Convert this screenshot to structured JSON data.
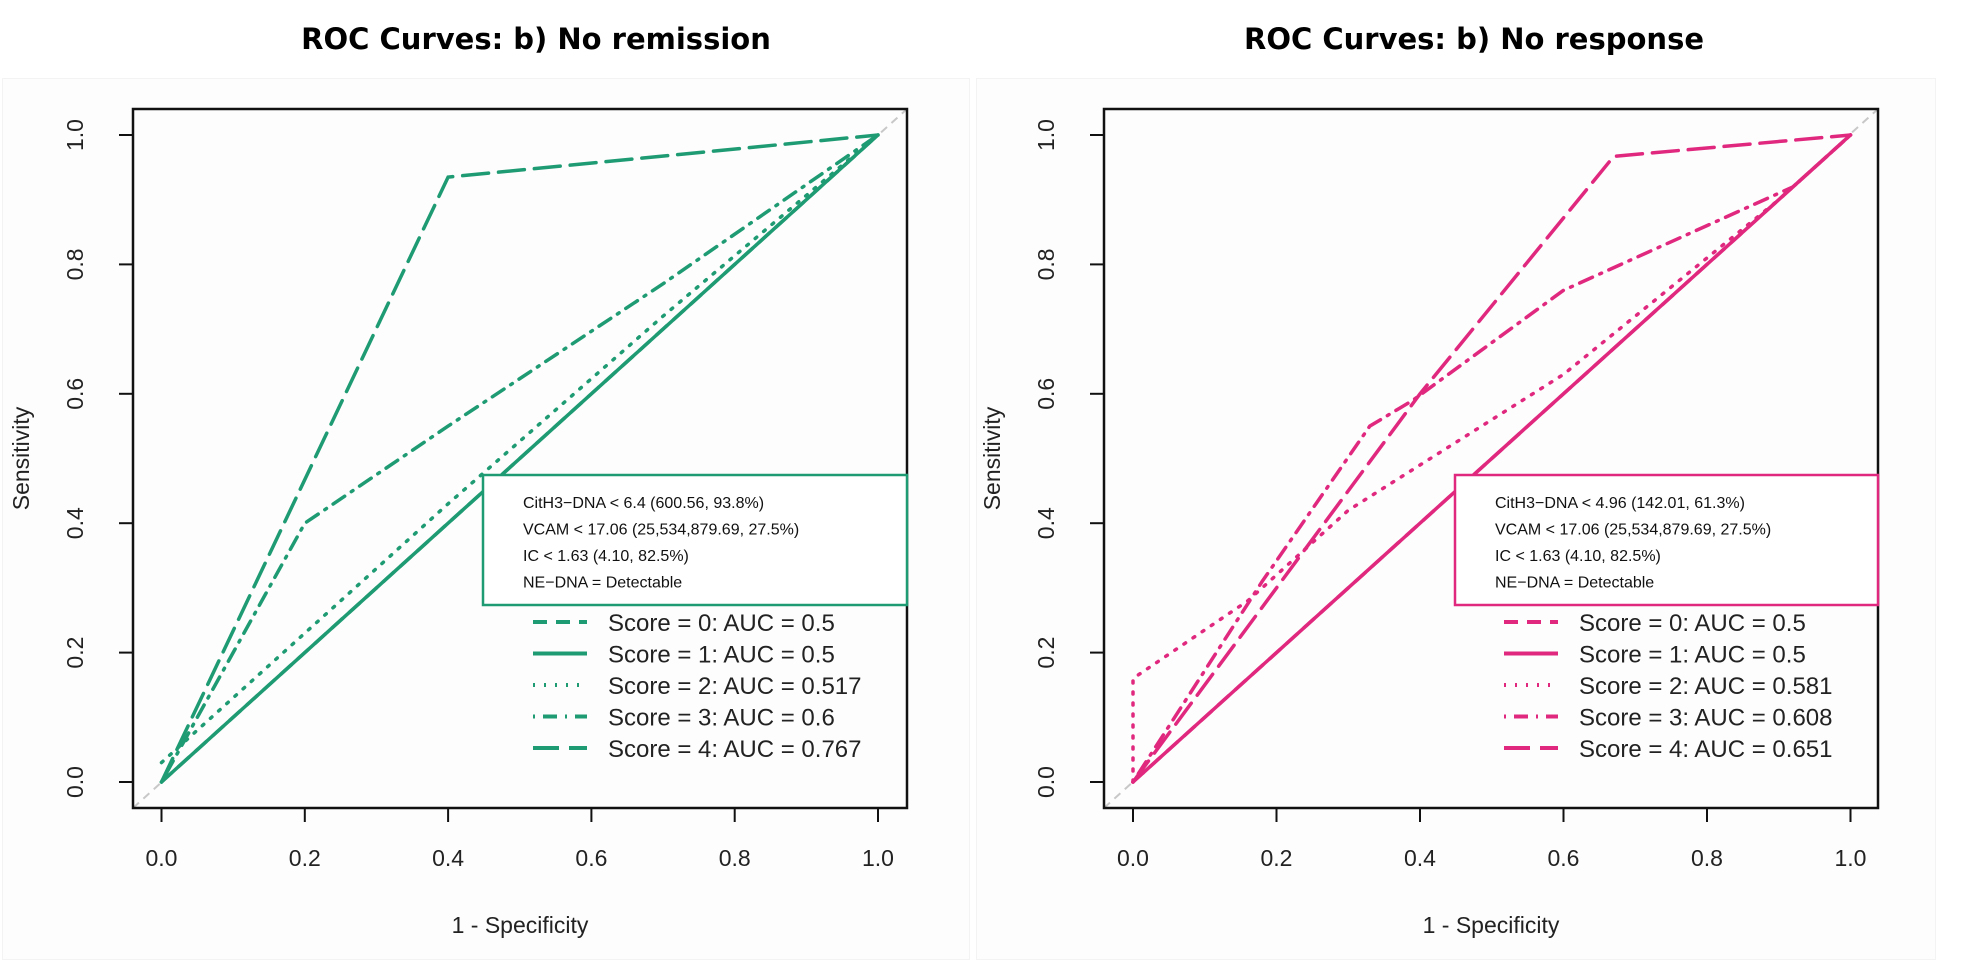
{
  "chart_data": [
    {
      "type": "line",
      "title": "ROC Curves: b) No remission",
      "xlabel": "1 - Specificity",
      "ylabel": "Sensitivity",
      "xlim": [
        0,
        1
      ],
      "ylim": [
        0,
        1
      ],
      "xticks": [
        "0.0",
        "0.2",
        "0.4",
        "0.6",
        "0.8",
        "1.0"
      ],
      "yticks": [
        "0.0",
        "0.2",
        "0.4",
        "0.6",
        "0.8",
        "1.0"
      ],
      "color": "#1f9b73",
      "annotation": [
        "CitH3−DNA < 6.4 (600.56, 93.8%)",
        "VCAM < 17.06 (25,534,879.69, 27.5%)",
        "IC < 1.63 (4.10, 82.5%)",
        "NE−DNA = Detectable"
      ],
      "legend_position": "bottom-right",
      "series": [
        {
          "name": "Score = 0: AUC = 0.5",
          "style": "dashed",
          "x": [
            0,
            1
          ],
          "y": [
            0,
            1
          ]
        },
        {
          "name": "Score = 1: AUC = 0.5",
          "style": "solid",
          "x": [
            0,
            1
          ],
          "y": [
            0,
            1
          ]
        },
        {
          "name": "Score = 2: AUC = 0.517",
          "style": "dotted",
          "x": [
            0,
            0.05,
            0.4,
            0.7,
            1
          ],
          "y": [
            0.03,
            0.08,
            0.43,
            0.72,
            1
          ]
        },
        {
          "name": "Score = 3: AUC = 0.6",
          "style": "dotdash",
          "x": [
            0,
            0.2,
            0.4,
            0.7,
            1
          ],
          "y": [
            0,
            0.4,
            0.55,
            0.77,
            1
          ]
        },
        {
          "name": "Score = 4: AUC = 0.767",
          "style": "longdash",
          "x": [
            0,
            0.4,
            1
          ],
          "y": [
            0,
            0.935,
            1
          ]
        }
      ]
    },
    {
      "type": "line",
      "title": "ROC Curves: b) No response",
      "xlabel": "1 - Specificity",
      "ylabel": "Sensitivity",
      "xlim": [
        0,
        1
      ],
      "ylim": [
        0,
        1
      ],
      "xticks": [
        "0.0",
        "0.2",
        "0.4",
        "0.6",
        "0.8",
        "1.0"
      ],
      "yticks": [
        "0.0",
        "0.2",
        "0.4",
        "0.6",
        "0.8",
        "1.0"
      ],
      "color": "#e0287f",
      "annotation": [
        "CitH3−DNA < 4.96 (142.01, 61.3%)",
        "VCAM < 17.06 (25,534,879.69, 27.5%)",
        "IC < 1.63 (4.10, 82.5%)",
        "NE−DNA = Detectable"
      ],
      "legend_position": "bottom-right",
      "series": [
        {
          "name": "Score = 0: AUC = 0.5",
          "style": "dashed",
          "x": [
            0,
            1
          ],
          "y": [
            0,
            1
          ]
        },
        {
          "name": "Score = 1: AUC = 0.5",
          "style": "solid",
          "x": [
            0,
            1
          ],
          "y": [
            0,
            1
          ]
        },
        {
          "name": "Score = 2: AUC = 0.581",
          "style": "dotted",
          "x": [
            0,
            0,
            0.16,
            0.3,
            0.6,
            0.9,
            1
          ],
          "y": [
            0,
            0.16,
            0.28,
            0.42,
            0.63,
            0.9,
            1
          ]
        },
        {
          "name": "Score = 3: AUC = 0.608",
          "style": "dotdash",
          "x": [
            0,
            0.18,
            0.33,
            0.39,
            0.6,
            0.8,
            0.92,
            1
          ],
          "y": [
            0,
            0.31,
            0.55,
            0.59,
            0.76,
            0.86,
            0.92,
            1
          ]
        },
        {
          "name": "Score = 4: AUC = 0.651",
          "style": "longdash",
          "x": [
            0,
            0.2,
            0.4,
            0.67,
            1
          ],
          "y": [
            0,
            0.3,
            0.6,
            0.967,
            1
          ]
        }
      ]
    }
  ]
}
